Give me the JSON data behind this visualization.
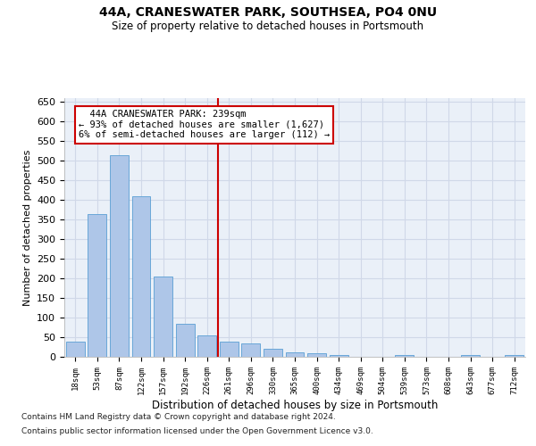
{
  "title1": "44A, CRANESWATER PARK, SOUTHSEA, PO4 0NU",
  "title2": "Size of property relative to detached houses in Portsmouth",
  "xlabel": "Distribution of detached houses by size in Portsmouth",
  "ylabel": "Number of detached properties",
  "categories": [
    "18sqm",
    "53sqm",
    "87sqm",
    "122sqm",
    "157sqm",
    "192sqm",
    "226sqm",
    "261sqm",
    "296sqm",
    "330sqm",
    "365sqm",
    "400sqm",
    "434sqm",
    "469sqm",
    "504sqm",
    "539sqm",
    "573sqm",
    "608sqm",
    "643sqm",
    "677sqm",
    "712sqm"
  ],
  "bar_heights": [
    38,
    365,
    515,
    410,
    205,
    85,
    55,
    38,
    35,
    20,
    12,
    8,
    5,
    0,
    0,
    5,
    0,
    0,
    5,
    0,
    5
  ],
  "bar_color": "#aec6e8",
  "bar_edge_color": "#5a9fd4",
  "property_line_x": 6.5,
  "annotation_line1": "  44A CRANESWATER PARK: 239sqm",
  "annotation_line2": "← 93% of detached houses are smaller (1,627)",
  "annotation_line3": "6% of semi-detached houses are larger (112) →",
  "annotation_box_color": "#ffffff",
  "annotation_border_color": "#cc0000",
  "vline_color": "#cc0000",
  "grid_color": "#d0d8e8",
  "background_color": "#eaf0f8",
  "ylim": [
    0,
    660
  ],
  "footer1": "Contains HM Land Registry data © Crown copyright and database right 2024.",
  "footer2": "Contains public sector information licensed under the Open Government Licence v3.0."
}
